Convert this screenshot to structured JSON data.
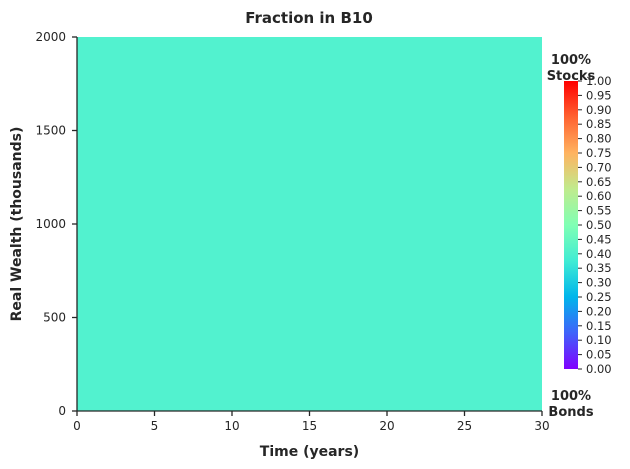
{
  "chart_data": {
    "type": "heatmap",
    "title": "Fraction in B10",
    "xlabel": "Time (years)",
    "ylabel": "Real Wealth (thousands)",
    "xlim": [
      0,
      30
    ],
    "ylim": [
      0,
      2000
    ],
    "xticks": [
      "0",
      "5",
      "10",
      "15",
      "20",
      "25",
      "30"
    ],
    "yticks": [
      "0",
      "500",
      "1000",
      "1500",
      "2000"
    ],
    "fill_value": 0.42,
    "fill_color": "#52f2cf",
    "colorbar": {
      "colormap": "rainbow",
      "range": [
        0.0,
        1.0
      ],
      "ticks": [
        "0.00",
        "0.05",
        "0.10",
        "0.15",
        "0.20",
        "0.25",
        "0.30",
        "0.35",
        "0.40",
        "0.45",
        "0.50",
        "0.55",
        "0.60",
        "0.65",
        "0.70",
        "0.75",
        "0.80",
        "0.85",
        "0.90",
        "0.95",
        "1.00"
      ],
      "top_label": [
        "100%",
        "Stocks"
      ],
      "bottom_label": [
        "100%",
        "Bonds"
      ]
    },
    "grid": false,
    "legend": "none"
  }
}
